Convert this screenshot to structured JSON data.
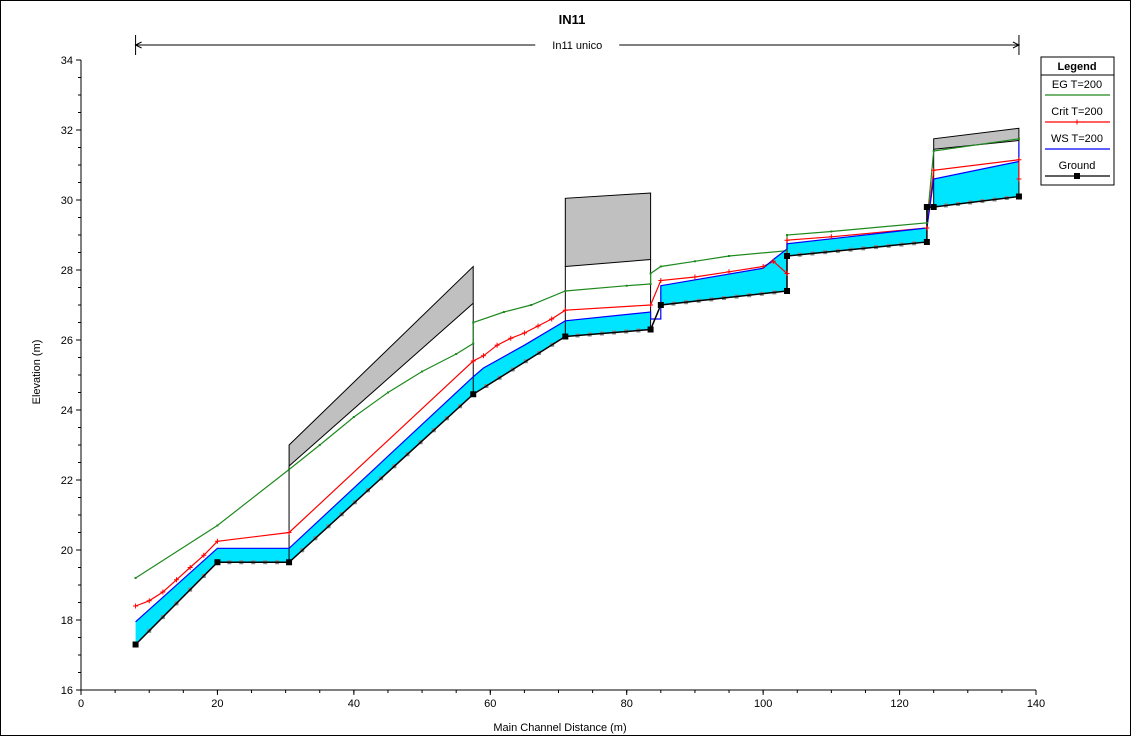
{
  "chart_data": {
    "type": "line",
    "title": "IN11",
    "reach_label": "In11 unico",
    "xlabel": "Main Channel Distance (m)",
    "ylabel": "Elevation (m)",
    "xlim": [
      0,
      140
    ],
    "ylim": [
      16,
      34
    ],
    "x_ticks": [
      0,
      20,
      40,
      60,
      80,
      100,
      120,
      140
    ],
    "y_ticks": [
      16,
      18,
      20,
      22,
      24,
      26,
      28,
      30,
      32,
      34
    ],
    "reach_extent": [
      8,
      137.5
    ],
    "legend": {
      "title": "Legend",
      "position": "top-right",
      "entries": [
        "EG  T=200",
        "Crit  T=200",
        "WS  T=200",
        "Ground"
      ]
    },
    "colors": {
      "eg": "#1e8a1e",
      "crit": "#ff0000",
      "ws": "#0000ff",
      "ground": "#000000",
      "water_fill": "#00e5ff",
      "structure_fill": "#c0c0c0",
      "ground_marker": "#000000",
      "bank_marker": "#888888"
    },
    "series": [
      {
        "name": "EG  T=200",
        "points": [
          [
            8,
            19.2
          ],
          [
            20,
            20.7
          ],
          [
            30.5,
            22.3
          ],
          [
            35,
            23.0
          ],
          [
            40,
            23.8
          ],
          [
            45,
            24.5
          ],
          [
            50,
            25.1
          ],
          [
            55,
            25.6
          ],
          [
            57.5,
            25.9
          ],
          [
            57.5,
            26.5
          ],
          [
            62,
            26.8
          ],
          [
            66,
            27.0
          ],
          [
            71,
            27.4
          ],
          [
            80,
            27.55
          ],
          [
            83.5,
            27.6
          ],
          [
            83.5,
            27.9
          ],
          [
            85,
            28.1
          ],
          [
            90,
            28.25
          ],
          [
            95,
            28.4
          ],
          [
            103.5,
            28.55
          ],
          [
            103.5,
            29.0
          ],
          [
            110,
            29.1
          ],
          [
            124,
            29.35
          ],
          [
            125,
            31.4
          ],
          [
            137.5,
            31.75
          ]
        ]
      },
      {
        "name": "Crit  T=200",
        "points": [
          [
            8,
            18.4
          ],
          [
            10,
            18.55
          ],
          [
            12,
            18.8
          ],
          [
            14,
            19.15
          ],
          [
            16,
            19.5
          ],
          [
            18,
            19.85
          ],
          [
            20,
            20.25
          ],
          [
            30.5,
            20.5
          ],
          [
            57.5,
            25.4
          ],
          [
            59,
            25.55
          ],
          [
            61,
            25.85
          ],
          [
            63,
            26.05
          ],
          [
            65,
            26.2
          ],
          [
            67,
            26.4
          ],
          [
            69,
            26.6
          ],
          [
            71,
            26.85
          ],
          [
            83.5,
            27.0
          ],
          [
            85,
            27.7
          ],
          [
            90,
            27.8
          ],
          [
            95,
            27.95
          ],
          [
            100,
            28.1
          ],
          [
            101.5,
            28.25
          ],
          [
            103.5,
            27.9
          ],
          [
            103.5,
            28.85
          ],
          [
            110,
            28.95
          ],
          [
            124,
            29.2
          ],
          [
            125,
            30.85
          ],
          [
            137.5,
            31.15
          ],
          [
            137.5,
            30.6
          ]
        ]
      },
      {
        "name": "WS  T=200",
        "points": [
          [
            8,
            17.95
          ],
          [
            20,
            20.05
          ],
          [
            30.5,
            20.05
          ],
          [
            57.5,
            24.95
          ],
          [
            59,
            25.2
          ],
          [
            65,
            25.85
          ],
          [
            71,
            26.55
          ],
          [
            83.5,
            26.8
          ],
          [
            83.5,
            26.6
          ],
          [
            85,
            26.6
          ],
          [
            85,
            27.55
          ],
          [
            100,
            28.05
          ],
          [
            101.5,
            28.3
          ],
          [
            103.5,
            28.6
          ],
          [
            103.5,
            28.75
          ],
          [
            124,
            29.2
          ],
          [
            125,
            30.6
          ],
          [
            137.5,
            31.1
          ],
          [
            137.5,
            31.65
          ]
        ]
      },
      {
        "name": "Ground",
        "points": [
          [
            8,
            17.3
          ],
          [
            20,
            19.65
          ],
          [
            30.5,
            19.65
          ],
          [
            57.5,
            24.45
          ],
          [
            71,
            26.1
          ],
          [
            83.5,
            26.3
          ],
          [
            85,
            27.0
          ],
          [
            103.5,
            27.4
          ],
          [
            103.5,
            28.4
          ],
          [
            124,
            28.8
          ],
          [
            124,
            29.8
          ],
          [
            125,
            29.8
          ],
          [
            137.5,
            30.1
          ]
        ]
      }
    ],
    "structures": [
      {
        "x_start": 30.5,
        "x_end": 57.5,
        "top": [
          23.0,
          28.1
        ],
        "bottom": [
          22.4,
          27.05
        ]
      },
      {
        "x_start": 71,
        "x_end": 83.5,
        "top": [
          30.05,
          30.2
        ],
        "bottom": [
          28.1,
          28.3
        ]
      },
      {
        "x_start": 125,
        "x_end": 137.5,
        "top": [
          31.75,
          32.05
        ],
        "bottom": [
          31.45,
          31.7
        ]
      }
    ]
  }
}
